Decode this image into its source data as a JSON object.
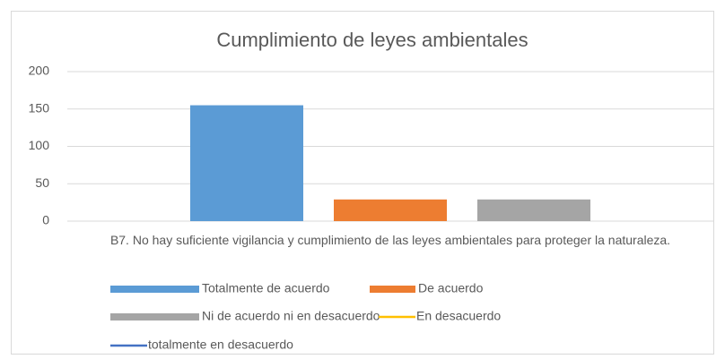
{
  "chart_data": {
    "type": "bar",
    "title": "Cumplimiento de leyes ambientales",
    "categories": [
      "B7. No hay suficiente vigilancia y cumplimiento de las leyes ambientales para proteger la naturaleza."
    ],
    "series": [
      {
        "name": "Totalmente de acuerdo",
        "color": "#5b9bd5",
        "values": [
          155
        ]
      },
      {
        "name": "De acuerdo",
        "color": "#ed7d31",
        "values": [
          29
        ]
      },
      {
        "name": "Ni de acuerdo ni en desacuerdo",
        "color": "#a5a5a5",
        "values": [
          29
        ]
      },
      {
        "name": "En desacuerdo",
        "color": "#ffc000",
        "type": "line",
        "values": [
          0
        ]
      },
      {
        "name": "totalmente  en desacuerdo",
        "color": "#4472c4",
        "type": "line",
        "values": [
          0
        ]
      }
    ],
    "ylim": [
      0,
      200
    ],
    "yticks": [
      0,
      50,
      100,
      150,
      200
    ],
    "grid": true
  }
}
